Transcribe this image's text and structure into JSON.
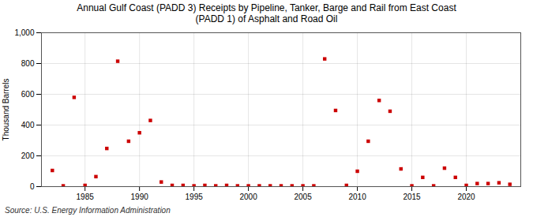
{
  "chart_data": {
    "type": "scatter",
    "title": "Annual Gulf Coast (PADD 3) Receipts by Pipeline, Tanker, Barge and Rail from East Coast\n(PADD 1) of Asphalt and Road Oil",
    "ylabel": "Thousand Barrels",
    "source": "Source: U.S. Energy Information Administration",
    "x": [
      1982,
      1983,
      1984,
      1985,
      1986,
      1987,
      1988,
      1989,
      1990,
      1991,
      1992,
      1993,
      1994,
      1995,
      1996,
      1997,
      1998,
      1999,
      2000,
      2001,
      2002,
      2003,
      2004,
      2005,
      2006,
      2007,
      2008,
      2009,
      2010,
      2011,
      2012,
      2013,
      2014,
      2015,
      2016,
      2017,
      2018,
      2019,
      2020,
      2021,
      2022,
      2023,
      2024
    ],
    "values": [
      105,
      5,
      580,
      8,
      65,
      248,
      815,
      295,
      350,
      430,
      30,
      8,
      8,
      5,
      8,
      5,
      8,
      5,
      5,
      5,
      5,
      5,
      5,
      5,
      5,
      830,
      495,
      8,
      100,
      295,
      560,
      490,
      115,
      5,
      60,
      5,
      120,
      60,
      8,
      20,
      20,
      25,
      15
    ],
    "color": "#cc0000",
    "marker": "square",
    "xlim": [
      1981,
      2025
    ],
    "xticks": [
      1985,
      1990,
      1995,
      2000,
      2005,
      2010,
      2015,
      2020
    ],
    "ylim": [
      0,
      1000
    ],
    "yticks": [
      0,
      200,
      400,
      600,
      800,
      {
        "value": 1000,
        "label": "1,000"
      }
    ],
    "grid": true
  }
}
